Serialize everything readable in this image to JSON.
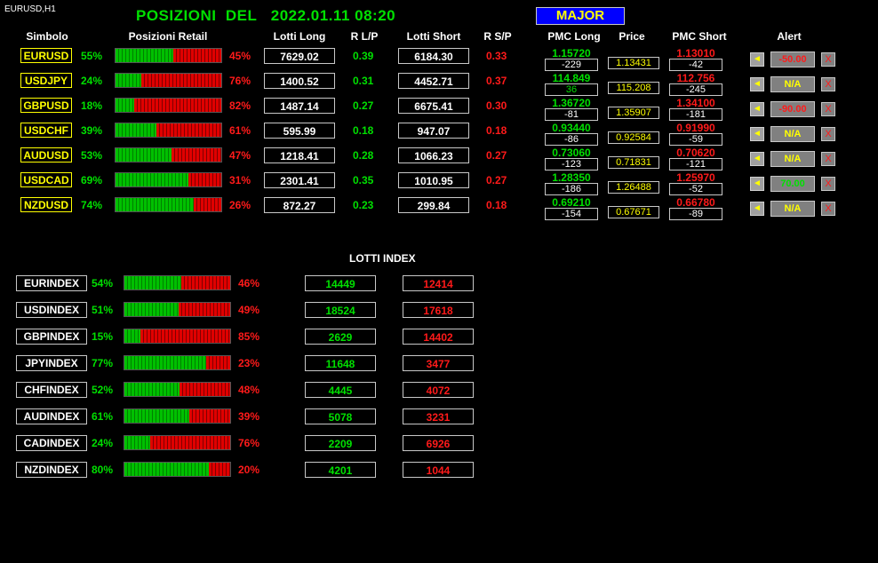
{
  "chart_label": "EURUSD,H1",
  "title": "POSIZIONI  DEL   2022.01.11 08:20",
  "major_label": "MAJOR",
  "headers": {
    "simbolo": "Simbolo",
    "posizioni": "Posizioni Retail",
    "lotti_long": "Lotti Long",
    "rlp": "R L/P",
    "lotti_short": "Lotti Short",
    "rsp": "R S/P",
    "pmc_long": "PMC Long",
    "price": "Price",
    "pmc_short": "PMC Short",
    "alert": "Alert"
  },
  "pairs": [
    {
      "symbol": "EURUSD",
      "long_pct": "55%",
      "short_pct": "45%",
      "long_frac": 0.55,
      "lotti_long": "7629.02",
      "rlp": "0.39",
      "lotti_short": "6184.30",
      "rsp": "0.33",
      "pmc_long": "1.15720",
      "pmc_long_diff": "-229",
      "price": "1.13431",
      "pmc_short": "1.13010",
      "pmc_short_diff": "-42",
      "alert": "-50.00",
      "alert_color": "#ff1a1a",
      "bell": "◄",
      "x": "X"
    },
    {
      "symbol": "USDJPY",
      "long_pct": "24%",
      "short_pct": "76%",
      "long_frac": 0.24,
      "lotti_long": "1400.52",
      "rlp": "0.31",
      "lotti_short": "4452.71",
      "rsp": "0.37",
      "pmc_long": "114.849",
      "pmc_long_diff": "36",
      "price": "115.208",
      "pmc_short": "112.756",
      "pmc_short_diff": "-245",
      "alert": "N/A",
      "alert_color": "#ffff00",
      "bell": "◄",
      "x": "X"
    },
    {
      "symbol": "GBPUSD",
      "long_pct": "18%",
      "short_pct": "82%",
      "long_frac": 0.18,
      "lotti_long": "1487.14",
      "rlp": "0.27",
      "lotti_short": "6675.41",
      "rsp": "0.30",
      "pmc_long": "1.36720",
      "pmc_long_diff": "-81",
      "price": "1.35907",
      "pmc_short": "1.34100",
      "pmc_short_diff": "-181",
      "alert": "-90.00",
      "alert_color": "#ff1a1a",
      "bell": "◄",
      "x": "X"
    },
    {
      "symbol": "USDCHF",
      "long_pct": "39%",
      "short_pct": "61%",
      "long_frac": 0.39,
      "lotti_long": "595.99",
      "rlp": "0.18",
      "lotti_short": "947.07",
      "rsp": "0.18",
      "pmc_long": "0.93440",
      "pmc_long_diff": "-86",
      "price": "0.92584",
      "pmc_short": "0.91990",
      "pmc_short_diff": "-59",
      "alert": "N/A",
      "alert_color": "#ffff00",
      "bell": "◄",
      "x": "X"
    },
    {
      "symbol": "AUDUSD",
      "long_pct": "53%",
      "short_pct": "47%",
      "long_frac": 0.53,
      "lotti_long": "1218.41",
      "rlp": "0.28",
      "lotti_short": "1066.23",
      "rsp": "0.27",
      "pmc_long": "0.73060",
      "pmc_long_diff": "-123",
      "price": "0.71831",
      "pmc_short": "0.70620",
      "pmc_short_diff": "-121",
      "alert": "N/A",
      "alert_color": "#ffff00",
      "bell": "◄",
      "x": "X"
    },
    {
      "symbol": "USDCAD",
      "long_pct": "69%",
      "short_pct": "31%",
      "long_frac": 0.69,
      "lotti_long": "2301.41",
      "rlp": "0.35",
      "lotti_short": "1010.95",
      "rsp": "0.27",
      "pmc_long": "1.28350",
      "pmc_long_diff": "-186",
      "price": "1.26488",
      "pmc_short": "1.25970",
      "pmc_short_diff": "-52",
      "alert": "70.00",
      "alert_color": "#00e000",
      "bell": "◄",
      "x": "X"
    },
    {
      "symbol": "NZDUSD",
      "long_pct": "74%",
      "short_pct": "26%",
      "long_frac": 0.74,
      "lotti_long": "872.27",
      "rlp": "0.23",
      "lotti_short": "299.84",
      "rsp": "0.18",
      "pmc_long": "0.69210",
      "pmc_long_diff": "-154",
      "price": "0.67671",
      "pmc_short": "0.66780",
      "pmc_short_diff": "-89",
      "alert": "N/A",
      "alert_color": "#ffff00",
      "bell": "◄",
      "x": "X"
    }
  ],
  "lotti_index_title": "LOTTI INDEX",
  "indexes": [
    {
      "name": "EURINDEX",
      "long_pct": "54%",
      "short_pct": "46%",
      "long_frac": 0.54,
      "long": "14449",
      "short": "12414"
    },
    {
      "name": "USDINDEX",
      "long_pct": "51%",
      "short_pct": "49%",
      "long_frac": 0.51,
      "long": "18524",
      "short": "17618"
    },
    {
      "name": "GBPINDEX",
      "long_pct": "15%",
      "short_pct": "85%",
      "long_frac": 0.15,
      "long": "2629",
      "short": "14402"
    },
    {
      "name": "JPYINDEX",
      "long_pct": "77%",
      "short_pct": "23%",
      "long_frac": 0.77,
      "long": "11648",
      "short": "3477"
    },
    {
      "name": "CHFINDEX",
      "long_pct": "52%",
      "short_pct": "48%",
      "long_frac": 0.52,
      "long": "4445",
      "short": "4072"
    },
    {
      "name": "AUDINDEX",
      "long_pct": "61%",
      "short_pct": "39%",
      "long_frac": 0.61,
      "long": "5078",
      "short": "3231"
    },
    {
      "name": "CADINDEX",
      "long_pct": "24%",
      "short_pct": "76%",
      "long_frac": 0.24,
      "long": "2209",
      "short": "6926"
    },
    {
      "name": "NZDINDEX",
      "long_pct": "80%",
      "short_pct": "20%",
      "long_frac": 0.8,
      "long": "4201",
      "short": "1044"
    }
  ]
}
